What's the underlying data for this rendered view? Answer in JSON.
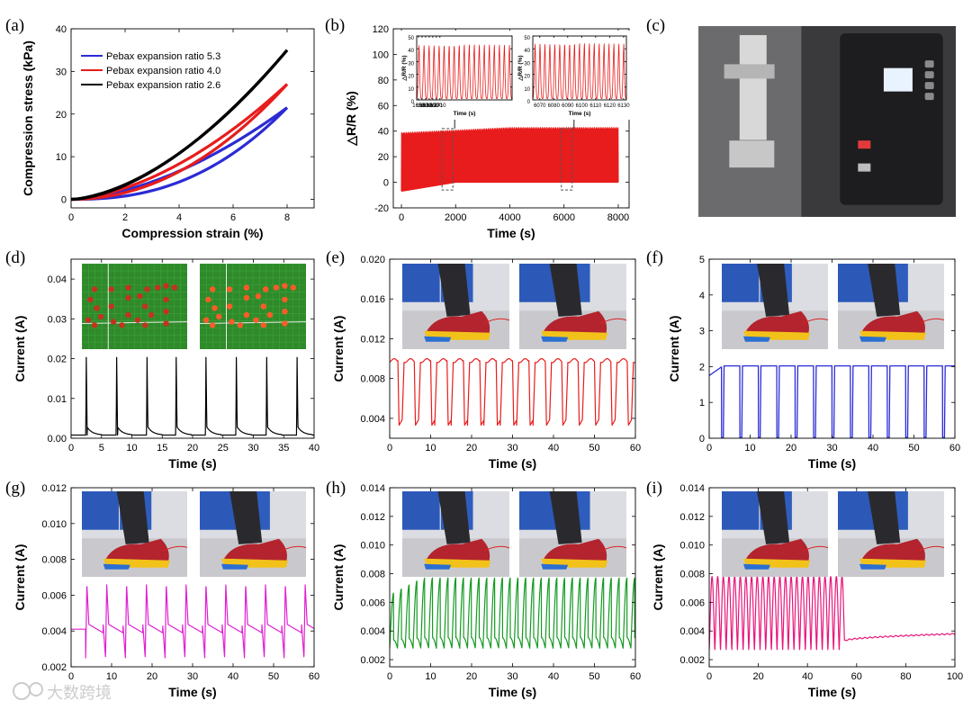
{
  "colors": {
    "blue": "#2b2bd6",
    "red": "#e81c1c",
    "black": "#000000",
    "magenta": "#e020d0",
    "green": "#159a22",
    "pink": "#e8157a",
    "photo_bg": "#e6e6e8",
    "board_green": "#2f8a2a"
  },
  "watermark": {
    "logo_icon": "watermark-logo-icon",
    "text": "大数跨境"
  },
  "chart_data": [
    {
      "id": "a",
      "label": "(a)",
      "type": "line",
      "xlabel": "Compression strain (%)",
      "ylabel": "Compression stress (kPa)",
      "xlim": [
        0,
        9
      ],
      "ylim": [
        -2,
        40
      ],
      "xticks": [
        0,
        2,
        4,
        6,
        8
      ],
      "yticks": [
        0,
        10,
        20,
        30,
        40
      ],
      "legend": {
        "position": "top-left"
      },
      "series": [
        {
          "name": "Pebax expansion ratio 5.3",
          "color": "#2b2bd6",
          "max_strain": 8,
          "max_stress": 21.5
        },
        {
          "name": "Pebax expansion ratio 4.0",
          "color": "#e81c1c",
          "max_strain": 8,
          "max_stress": 27
        },
        {
          "name": "Pebax expansion ratio 2.6",
          "color": "#000000",
          "max_strain": 8,
          "max_stress": 35
        }
      ]
    },
    {
      "id": "b",
      "label": "(b)",
      "type": "line",
      "xlabel": "Time (s)",
      "ylabel": "△R/R (%)",
      "xlim": [
        -300,
        8400
      ],
      "ylim": [
        -20,
        120
      ],
      "xticks": [
        0,
        2000,
        4000,
        6000,
        8000
      ],
      "yticks": [
        -20,
        0,
        20,
        40,
        60,
        80,
        100,
        120
      ],
      "color": "#e81c1c",
      "band": {
        "x": [
          0,
          8000
        ],
        "low": [
          -7,
          0
        ],
        "high": [
          38,
          42
        ]
      },
      "insets": [
        {
          "xlabel": "Time (s)",
          "ylabel": "△R/R (%)",
          "xlim": [
            1645,
            1912
          ],
          "ylim": [
            0,
            50
          ],
          "xticks": [
            1650,
            1660,
            1670,
            1680,
            1690,
            1700,
            1710
          ],
          "yticks": [
            0,
            10,
            20,
            30,
            40,
            50
          ],
          "cycles": 19,
          "peak": 42
        },
        {
          "xlabel": "Time (s)",
          "ylabel": "△R/R (%)",
          "xlim": [
            6065,
            6132
          ],
          "ylim": [
            0,
            50
          ],
          "xticks": [
            6070,
            6080,
            6090,
            6100,
            6110,
            6120,
            6130
          ],
          "yticks": [
            0,
            10,
            20,
            30,
            40,
            50
          ],
          "cycles": 19,
          "peak": 43
        }
      ]
    },
    {
      "id": "c",
      "label": "(c)",
      "type": "photo",
      "content": "compression testing machine"
    },
    {
      "id": "d",
      "label": "(d)",
      "type": "line",
      "xlabel": "Time (s)",
      "ylabel": "Current (A)",
      "xlim": [
        0,
        40
      ],
      "ylim": [
        0,
        0.045
      ],
      "xticks": [
        0,
        5,
        10,
        15,
        20,
        25,
        30,
        35,
        40
      ],
      "yticks": [
        0.0,
        0.01,
        0.02,
        0.03,
        0.04
      ],
      "color": "#000000",
      "peaks_s": [
        2.5,
        7.5,
        12.5,
        17.3,
        22.2,
        27.2,
        32.2,
        37.2
      ],
      "peak_A": 0.0203,
      "baseline_A": 0.0008,
      "photos": [
        "SUST pattern lights off",
        "SUST pattern lights on"
      ]
    },
    {
      "id": "e",
      "label": "(e)",
      "type": "line",
      "xlabel": "Time (s)",
      "ylabel": "Current (A)",
      "xlim": [
        0,
        60
      ],
      "ylim": [
        0.002,
        0.02
      ],
      "xticks": [
        0,
        10,
        20,
        30,
        40,
        50,
        60
      ],
      "yticks": [
        0.004,
        0.008,
        0.012,
        0.016,
        0.02
      ],
      "color": "#e81c1c",
      "period_s": 4.0,
      "high_A": 0.0098,
      "low_A": 0.0033,
      "photos": [
        "shoe resting",
        "shoe pressed"
      ]
    },
    {
      "id": "f",
      "label": "(f)",
      "type": "line",
      "xlabel": "Time (s)",
      "ylabel": "Current (A)",
      "xlim": [
        0,
        60
      ],
      "ylim": [
        0,
        5
      ],
      "xticks": [
        0,
        10,
        20,
        30,
        40,
        50,
        60
      ],
      "yticks": [
        0,
        1,
        2,
        3,
        4,
        5
      ],
      "color": "#2b2bd6",
      "period_s": 4.5,
      "high_A": 2.02,
      "low_A": 0.02,
      "photos": [
        "shoe stepping",
        "shoe lifted"
      ]
    },
    {
      "id": "g",
      "label": "(g)",
      "type": "line",
      "xlabel": "Time (s)",
      "ylabel": "Current (A)",
      "xlim": [
        0,
        60
      ],
      "ylim": [
        0.002,
        0.012
      ],
      "xticks": [
        0,
        10,
        20,
        30,
        40,
        50,
        60
      ],
      "yticks": [
        0.002,
        0.004,
        0.006,
        0.008,
        0.01,
        0.012
      ],
      "color": "#e020d0",
      "period_s": 4.9,
      "high_A": 0.0066,
      "low_A": 0.0025,
      "photos": [
        "standing",
        "squatting"
      ]
    },
    {
      "id": "h",
      "label": "(h)",
      "type": "line",
      "xlabel": "Time (s)",
      "ylabel": "Current (A)",
      "xlim": [
        0,
        60
      ],
      "ylim": [
        0.0015,
        0.014
      ],
      "xticks": [
        0,
        10,
        20,
        30,
        40,
        50,
        60
      ],
      "yticks": [
        0.002,
        0.004,
        0.006,
        0.008,
        0.01,
        0.012,
        0.014
      ],
      "color": "#159a22",
      "period_s": 1.9,
      "high_A": 0.0077,
      "low_A": 0.0028,
      "photos": [
        "walking step 1",
        "walking step 2"
      ]
    },
    {
      "id": "i",
      "label": "(i)",
      "type": "line",
      "xlabel": "Time (s)",
      "ylabel": "Current (A)",
      "xlim": [
        0,
        100
      ],
      "ylim": [
        0.0015,
        0.014
      ],
      "xticks": [
        0,
        20,
        40,
        60,
        80,
        100
      ],
      "yticks": [
        0.002,
        0.004,
        0.006,
        0.008,
        0.01,
        0.012,
        0.014
      ],
      "color": "#e8157a",
      "period_s": 2.3,
      "high_A": 0.0078,
      "low_A": 0.0027,
      "fall_s": 55,
      "after_A": [
        0.0033,
        0.0038
      ],
      "photos": [
        "walking",
        "fallen"
      ]
    }
  ]
}
